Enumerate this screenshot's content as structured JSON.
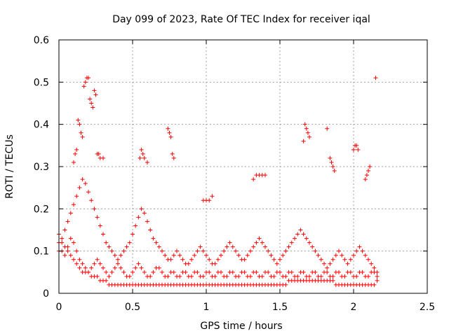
{
  "chart_data": {
    "type": "scatter",
    "title": "Day 099 of 2023, Rate Of TEC Index for receiver iqal",
    "xlabel": "GPS time / hours",
    "ylabel": "ROTI / TECUs",
    "xlim": [
      0,
      2.5
    ],
    "ylim": [
      0,
      0.6
    ],
    "x_ticks": [
      "0",
      "0.5",
      "1",
      "1.5",
      "2",
      "2.5"
    ],
    "y_ticks": [
      "0",
      "0.1",
      "0.2",
      "0.3",
      "0.4",
      "0.5",
      "0.6"
    ],
    "grid": true,
    "marker": "+",
    "color": "#ff0000",
    "series": [
      {
        "x": [
          0.0,
          0.02,
          0.04,
          0.06,
          0.08,
          0.1,
          0.12,
          0.14,
          0.16,
          0.18,
          0.2,
          0.22,
          0.24,
          0.26,
          0.28,
          0.3,
          0.32,
          0.34,
          0.36,
          0.38,
          0.4,
          0.42,
          0.44,
          0.46,
          0.48,
          0.5,
          0.52,
          0.54,
          0.56,
          0.58,
          0.6,
          0.62,
          0.64,
          0.66,
          0.68,
          0.7,
          0.72,
          0.74,
          0.76,
          0.78,
          0.8,
          0.82,
          0.84,
          0.86,
          0.88,
          0.9,
          0.92,
          0.94,
          0.96,
          0.98,
          1.0,
          1.02,
          1.04,
          1.06,
          1.08,
          1.1,
          1.12,
          1.14,
          1.16,
          1.18,
          1.2,
          1.22,
          1.24,
          1.26,
          1.28,
          1.3,
          1.32,
          1.34,
          1.36,
          1.38,
          1.4,
          1.42,
          1.44,
          1.46,
          1.48,
          1.5,
          1.52,
          1.54,
          1.56,
          1.58,
          1.6,
          1.62,
          1.64,
          1.66,
          1.68,
          1.7,
          1.72,
          1.74,
          1.76,
          1.78,
          1.8,
          1.82,
          1.84,
          1.86,
          1.88,
          1.9,
          1.92,
          1.94,
          1.96,
          1.98,
          2.0,
          2.02,
          2.04,
          2.06,
          2.08,
          2.1,
          2.12,
          2.14,
          2.16
        ],
        "y": [
          0.1,
          0.13,
          0.15,
          0.17,
          0.19,
          0.21,
          0.23,
          0.25,
          0.27,
          0.26,
          0.24,
          0.22,
          0.2,
          0.18,
          0.16,
          0.14,
          0.12,
          0.11,
          0.1,
          0.09,
          0.08,
          0.09,
          0.1,
          0.11,
          0.12,
          0.14,
          0.16,
          0.18,
          0.2,
          0.19,
          0.17,
          0.15,
          0.13,
          0.12,
          0.11,
          0.1,
          0.09,
          0.08,
          0.08,
          0.09,
          0.1,
          0.09,
          0.08,
          0.07,
          0.07,
          0.08,
          0.09,
          0.1,
          0.11,
          0.1,
          0.09,
          0.08,
          0.07,
          0.07,
          0.08,
          0.09,
          0.1,
          0.11,
          0.12,
          0.11,
          0.1,
          0.09,
          0.08,
          0.08,
          0.09,
          0.1,
          0.11,
          0.12,
          0.13,
          0.12,
          0.11,
          0.1,
          0.09,
          0.08,
          0.07,
          0.08,
          0.09,
          0.1,
          0.11,
          0.12,
          0.13,
          0.14,
          0.15,
          0.14,
          0.13,
          0.12,
          0.11,
          0.1,
          0.09,
          0.08,
          0.07,
          0.06,
          0.07,
          0.08,
          0.09,
          0.1,
          0.09,
          0.08,
          0.07,
          0.08,
          0.09,
          0.1,
          0.11,
          0.1,
          0.09,
          0.08,
          0.07,
          0.06,
          0.05
        ]
      },
      {
        "x": [
          0.0,
          0.02,
          0.04,
          0.06,
          0.08,
          0.1,
          0.12,
          0.14,
          0.16,
          0.18,
          0.2,
          0.22,
          0.24,
          0.26,
          0.28,
          0.3,
          0.32,
          0.34,
          0.36,
          0.38,
          0.4,
          0.42,
          0.44,
          0.46,
          0.48,
          0.5,
          0.52,
          0.54,
          0.56,
          0.58,
          0.6,
          0.62,
          0.64,
          0.66,
          0.68,
          0.7,
          0.72,
          0.74,
          0.76,
          0.78,
          0.8,
          0.82,
          0.84,
          0.86,
          0.88,
          0.9,
          0.92,
          0.94,
          0.96,
          0.98,
          1.0,
          1.02,
          1.04,
          1.06,
          1.08,
          1.1,
          1.12,
          1.14,
          1.16,
          1.18,
          1.2,
          1.22,
          1.24,
          1.26,
          1.28,
          1.3,
          1.32,
          1.34,
          1.36,
          1.38,
          1.4,
          1.42,
          1.44,
          1.46,
          1.48,
          1.5,
          1.52,
          1.54,
          1.56,
          1.58,
          1.6,
          1.62,
          1.64,
          1.66,
          1.68,
          1.7,
          1.72,
          1.74,
          1.76,
          1.78,
          1.8,
          1.82,
          1.84,
          1.86,
          1.88,
          1.9,
          1.92,
          1.94,
          1.96,
          1.98,
          2.0,
          2.02,
          2.04,
          2.06,
          2.08,
          2.1,
          2.12,
          2.14,
          2.16
        ],
        "y": [
          0.14,
          0.12,
          0.11,
          0.1,
          0.09,
          0.08,
          0.07,
          0.06,
          0.05,
          0.05,
          0.05,
          0.04,
          0.04,
          0.04,
          0.03,
          0.03,
          0.03,
          0.02,
          0.02,
          0.02,
          0.02,
          0.02,
          0.02,
          0.02,
          0.02,
          0.02,
          0.02,
          0.02,
          0.02,
          0.02,
          0.02,
          0.02,
          0.02,
          0.02,
          0.02,
          0.02,
          0.02,
          0.02,
          0.02,
          0.02,
          0.02,
          0.02,
          0.02,
          0.02,
          0.02,
          0.02,
          0.02,
          0.02,
          0.02,
          0.02,
          0.02,
          0.02,
          0.02,
          0.02,
          0.02,
          0.02,
          0.02,
          0.02,
          0.02,
          0.02,
          0.02,
          0.02,
          0.02,
          0.02,
          0.02,
          0.02,
          0.02,
          0.02,
          0.02,
          0.02,
          0.02,
          0.02,
          0.02,
          0.02,
          0.02,
          0.02,
          0.02,
          0.02,
          0.03,
          0.03,
          0.03,
          0.03,
          0.03,
          0.03,
          0.03,
          0.03,
          0.03,
          0.03,
          0.03,
          0.03,
          0.03,
          0.03,
          0.03,
          0.03,
          0.02,
          0.02,
          0.02,
          0.02,
          0.02,
          0.02,
          0.02,
          0.02,
          0.02,
          0.02,
          0.02,
          0.02,
          0.02,
          0.02,
          0.03
        ]
      },
      {
        "x": [
          0.0,
          0.02,
          0.04,
          0.06,
          0.08,
          0.1,
          0.12,
          0.14,
          0.16,
          0.18,
          0.2,
          0.22,
          0.24,
          0.26,
          0.28,
          0.3,
          0.32,
          0.34,
          0.36,
          0.38,
          0.4,
          0.42,
          0.44,
          0.46,
          0.48,
          0.5,
          0.52,
          0.54,
          0.56,
          0.58,
          0.6,
          0.62,
          0.64,
          0.66,
          0.68,
          0.7,
          0.72,
          0.74,
          0.76,
          0.78,
          0.8,
          0.82,
          0.84,
          0.86,
          0.88,
          0.9,
          0.92,
          0.94,
          0.96,
          0.98,
          1.0,
          1.02,
          1.04,
          1.06,
          1.08,
          1.1,
          1.12,
          1.14,
          1.16,
          1.18,
          1.2,
          1.22,
          1.24,
          1.26,
          1.28,
          1.3,
          1.32,
          1.34,
          1.36,
          1.38,
          1.4,
          1.42,
          1.44,
          1.46,
          1.48,
          1.5,
          1.52,
          1.54,
          1.56,
          1.58,
          1.6,
          1.62,
          1.64,
          1.66,
          1.68,
          1.7,
          1.72,
          1.74,
          1.76,
          1.78,
          1.8,
          1.82,
          1.84,
          1.86,
          1.88,
          1.9,
          1.92,
          1.94,
          1.96,
          1.98,
          2.0,
          2.02,
          2.04,
          2.06,
          2.08,
          2.1,
          2.12,
          2.14,
          2.16
        ],
        "y": [
          0.12,
          0.1,
          0.09,
          0.11,
          0.13,
          0.12,
          0.1,
          0.08,
          0.07,
          0.06,
          0.05,
          0.06,
          0.07,
          0.08,
          0.07,
          0.06,
          0.05,
          0.04,
          0.05,
          0.06,
          0.07,
          0.06,
          0.05,
          0.04,
          0.04,
          0.05,
          0.06,
          0.07,
          0.06,
          0.05,
          0.04,
          0.04,
          0.05,
          0.06,
          0.06,
          0.05,
          0.04,
          0.04,
          0.05,
          0.05,
          0.04,
          0.04,
          0.05,
          0.05,
          0.04,
          0.04,
          0.05,
          0.05,
          0.04,
          0.04,
          0.05,
          0.05,
          0.04,
          0.04,
          0.05,
          0.05,
          0.04,
          0.04,
          0.05,
          0.05,
          0.04,
          0.04,
          0.05,
          0.05,
          0.04,
          0.04,
          0.05,
          0.05,
          0.04,
          0.04,
          0.05,
          0.05,
          0.04,
          0.04,
          0.05,
          0.05,
          0.04,
          0.04,
          0.05,
          0.05,
          0.04,
          0.04,
          0.05,
          0.05,
          0.04,
          0.04,
          0.05,
          0.05,
          0.04,
          0.04,
          0.05,
          0.05,
          0.04,
          0.04,
          0.05,
          0.05,
          0.04,
          0.04,
          0.05,
          0.05,
          0.04,
          0.04,
          0.05,
          0.05,
          0.04,
          0.04,
          0.05,
          0.05,
          0.04
        ]
      },
      {
        "x": [
          0.1,
          0.11,
          0.12,
          0.13,
          0.14,
          0.15,
          0.16,
          0.17,
          0.18,
          0.19,
          0.2,
          0.21,
          0.22,
          0.23,
          0.24,
          0.25,
          0.26,
          0.27,
          0.28,
          0.3,
          0.55,
          0.56,
          0.57,
          0.58,
          0.6,
          0.74,
          0.75,
          0.76,
          0.77,
          0.78,
          0.98,
          1.0,
          1.02,
          1.04,
          1.32,
          1.34,
          1.36,
          1.38,
          1.4,
          1.66,
          1.67,
          1.68,
          1.69,
          1.7,
          1.82,
          1.84,
          1.85,
          1.86,
          1.87,
          2.0,
          2.01,
          2.02,
          2.03,
          2.08,
          2.09,
          2.1,
          2.11,
          2.15
        ],
        "y": [
          0.31,
          0.33,
          0.34,
          0.41,
          0.4,
          0.38,
          0.37,
          0.49,
          0.5,
          0.51,
          0.51,
          0.46,
          0.45,
          0.44,
          0.48,
          0.47,
          0.33,
          0.33,
          0.32,
          0.32,
          0.32,
          0.34,
          0.33,
          0.32,
          0.31,
          0.39,
          0.38,
          0.37,
          0.33,
          0.32,
          0.22,
          0.22,
          0.22,
          0.23,
          0.27,
          0.28,
          0.28,
          0.28,
          0.28,
          0.36,
          0.4,
          0.39,
          0.38,
          0.37,
          0.39,
          0.32,
          0.31,
          0.3,
          0.29,
          0.34,
          0.35,
          0.35,
          0.34,
          0.27,
          0.28,
          0.29,
          0.3,
          0.51
        ]
      }
    ]
  }
}
